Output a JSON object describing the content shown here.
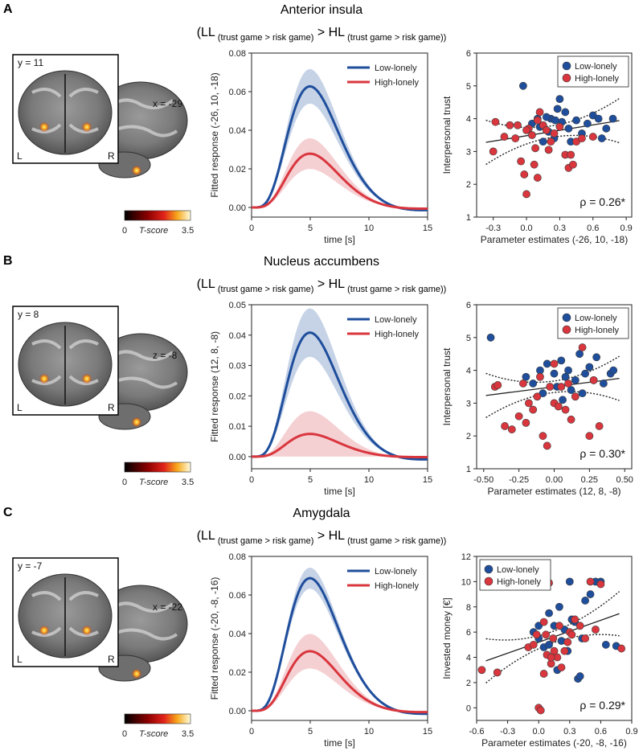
{
  "colors": {
    "low": "#1f4e9c",
    "high": "#d9363e",
    "low_fill": "#bccbe3",
    "high_fill": "#f3c8cb"
  },
  "contrast": {
    "ll": "LL",
    "hl": "HL",
    "sub": "(trust game > risk game)",
    "gt": ">"
  },
  "colorbar": {
    "min": "0",
    "max": "3.5",
    "label": "T-score"
  },
  "panels": [
    {
      "letter": "A",
      "region": "Anterior insula",
      "slice_inset": "y = 11",
      "slice_main": "x = -29",
      "L": "L",
      "R": "R",
      "chart_data": [
        {
          "type": "line",
          "ylabel": "Fitted response (-26, 10, -18)",
          "xlabel": "time [s]",
          "xlim": [
            0,
            15
          ],
          "xticks": [
            "0",
            "5",
            "10",
            "15"
          ],
          "ylim": [
            -0.005,
            0.08
          ],
          "yticks": [
            "0.00",
            "0.02",
            "0.04",
            "0.06",
            "0.08"
          ],
          "legend": "top-right",
          "series": [
            {
              "name": "Low-lonely",
              "peak": 0.063,
              "band": 0.009
            },
            {
              "name": "High-lonely",
              "peak": 0.028,
              "band": 0.008
            }
          ]
        },
        {
          "type": "scatter",
          "ylabel": "Interpersonal trust",
          "xlabel": "Parameter estimates (-26, 10, -18)",
          "xlim": [
            -0.45,
            0.95
          ],
          "xticks": [
            "-0.3",
            "0.0",
            "0.3",
            "0.6",
            "0.9"
          ],
          "ylim": [
            1,
            6
          ],
          "yticks": [
            "1",
            "2",
            "3",
            "4",
            "5",
            "6"
          ],
          "legend": "top-right",
          "rho": "ρ = 0.26*",
          "fit": {
            "slope": 0.55,
            "intercept": 3.48
          },
          "series": [
            {
              "name": "Low-lonely",
              "points": [
                [
                  -0.03,
                  5.0
                ],
                [
                  0.05,
                  3.85
                ],
                [
                  0.1,
                  4.0
                ],
                [
                  0.15,
                  3.3
                ],
                [
                  0.2,
                  3.6
                ],
                [
                  0.22,
                  4.0
                ],
                [
                  0.25,
                  3.4
                ],
                [
                  0.28,
                  4.3
                ],
                [
                  0.3,
                  4.6
                ],
                [
                  0.32,
                  3.9
                ],
                [
                  0.35,
                  4.2
                ],
                [
                  0.38,
                  3.7
                ],
                [
                  0.4,
                  3.3
                ],
                [
                  0.45,
                  3.95
                ],
                [
                  0.5,
                  3.55
                ],
                [
                  0.55,
                  3.85
                ],
                [
                  0.6,
                  4.1
                ],
                [
                  0.65,
                  4.0
                ],
                [
                  0.68,
                  3.4
                ],
                [
                  0.72,
                  3.7
                ],
                [
                  0.78,
                  4.0
                ],
                [
                  0.12,
                  3.75
                ],
                [
                  0.18,
                  4.05
                ],
                [
                  0.26,
                  3.95
                ]
              ]
            },
            {
              "name": "High-lonely",
              "points": [
                [
                  -0.3,
                  3.0
                ],
                [
                  -0.28,
                  3.9
                ],
                [
                  -0.2,
                  3.45
                ],
                [
                  -0.15,
                  3.8
                ],
                [
                  -0.1,
                  3.4
                ],
                [
                  -0.05,
                  2.7
                ],
                [
                  -0.02,
                  2.3
                ],
                [
                  0.0,
                  1.7
                ],
                [
                  0.02,
                  3.7
                ],
                [
                  0.05,
                  3.5
                ],
                [
                  0.07,
                  2.6
                ],
                [
                  0.08,
                  3.1
                ],
                [
                  0.1,
                  2.2
                ],
                [
                  0.12,
                  4.2
                ],
                [
                  0.15,
                  3.8
                ],
                [
                  0.18,
                  3.65
                ],
                [
                  0.2,
                  3.05
                ],
                [
                  0.22,
                  3.3
                ],
                [
                  0.25,
                  3.55
                ],
                [
                  0.3,
                  3.75
                ],
                [
                  0.35,
                  2.9
                ],
                [
                  0.38,
                  2.5
                ],
                [
                  0.4,
                  2.9
                ],
                [
                  0.42,
                  2.6
                ],
                [
                  0.45,
                  3.3
                ],
                [
                  0.5,
                  3.4
                ],
                [
                  0.6,
                  3.45
                ],
                [
                  0.1,
                  3.95
                ],
                [
                  0.0,
                  3.65
                ],
                [
                  -0.08,
                  3.8
                ]
              ]
            }
          ]
        }
      ]
    },
    {
      "letter": "B",
      "region": "Nucleus accumbens",
      "slice_inset": "y = 8",
      "slice_main": "z = -8",
      "L": "L",
      "R": "R",
      "chart_data": [
        {
          "type": "line",
          "ylabel": "Fitted response (12, 8, -8)",
          "xlabel": "time [s]",
          "xlim": [
            0,
            15
          ],
          "xticks": [
            "0",
            "5",
            "10",
            "15"
          ],
          "ylim": [
            -0.004,
            0.05
          ],
          "yticks": [
            "0.00",
            "0.01",
            "0.02",
            "0.03",
            "0.04",
            "0.05"
          ],
          "legend": "top-right",
          "series": [
            {
              "name": "Low-lonely",
              "peak": 0.041,
              "band": 0.008
            },
            {
              "name": "High-lonely",
              "peak": 0.0075,
              "band": 0.0075
            }
          ]
        },
        {
          "type": "scatter",
          "ylabel": "Interpersonal trust",
          "xlabel": "Parameter estimates (12, 8, -8)",
          "xlim": [
            -0.55,
            0.55
          ],
          "xticks": [
            "-0.50",
            "-0.25",
            "0.00",
            "0.25",
            "0.50"
          ],
          "ylim": [
            1,
            6
          ],
          "yticks": [
            "1",
            "2",
            "3",
            "4",
            "5",
            "6"
          ],
          "legend": "top-right",
          "rho": "ρ = 0.30*",
          "fit": {
            "slope": 0.55,
            "intercept": 3.5
          },
          "series": [
            {
              "name": "Low-lonely",
              "points": [
                [
                  -0.45,
                  5.0
                ],
                [
                  -0.2,
                  3.8
                ],
                [
                  -0.15,
                  3.6
                ],
                [
                  -0.1,
                  4.0
                ],
                [
                  -0.05,
                  4.2
                ],
                [
                  0.0,
                  3.9
                ],
                [
                  0.02,
                  3.5
                ],
                [
                  0.05,
                  4.3
                ],
                [
                  0.08,
                  3.8
                ],
                [
                  0.1,
                  4.0
                ],
                [
                  0.12,
                  3.4
                ],
                [
                  0.15,
                  3.7
                ],
                [
                  0.18,
                  4.5
                ],
                [
                  0.2,
                  3.3
                ],
                [
                  0.22,
                  3.9
                ],
                [
                  0.25,
                  4.1
                ],
                [
                  0.28,
                  3.7
                ],
                [
                  0.3,
                  4.4
                ],
                [
                  0.35,
                  3.6
                ],
                [
                  0.4,
                  3.9
                ],
                [
                  0.42,
                  4.0
                ],
                [
                  -0.08,
                  3.3
                ],
                [
                  0.06,
                  3.1
                ]
              ]
            },
            {
              "name": "High-lonely",
              "points": [
                [
                  -0.42,
                  3.5
                ],
                [
                  -0.4,
                  3.55
                ],
                [
                  -0.35,
                  2.3
                ],
                [
                  -0.3,
                  2.2
                ],
                [
                  -0.25,
                  2.6
                ],
                [
                  -0.2,
                  2.4
                ],
                [
                  -0.18,
                  3.0
                ],
                [
                  -0.15,
                  2.8
                ],
                [
                  -0.12,
                  3.2
                ],
                [
                  -0.1,
                  3.8
                ],
                [
                  -0.08,
                  2.0
                ],
                [
                  -0.05,
                  1.7
                ],
                [
                  -0.03,
                  3.5
                ],
                [
                  0.0,
                  3.0
                ],
                [
                  0.03,
                  2.9
                ],
                [
                  0.05,
                  3.5
                ],
                [
                  0.08,
                  2.8
                ],
                [
                  0.1,
                  3.6
                ],
                [
                  0.12,
                  2.5
                ],
                [
                  0.15,
                  3.2
                ],
                [
                  0.2,
                  4.7
                ],
                [
                  0.25,
                  2.0
                ],
                [
                  0.28,
                  3.7
                ],
                [
                  0.32,
                  2.3
                ],
                [
                  -0.22,
                  3.6
                ],
                [
                  0.0,
                  4.2
                ]
              ]
            }
          ]
        }
      ]
    },
    {
      "letter": "C",
      "region": "Amygdala",
      "slice_inset": "y = -7",
      "slice_main": "x = -22",
      "L": "L",
      "R": "R",
      "chart_data": [
        {
          "type": "line",
          "ylabel": "Fitted response (-20, -8, -16)",
          "xlabel": "time [s]",
          "xlim": [
            0,
            15
          ],
          "xticks": [
            "0",
            "5",
            "10",
            "15"
          ],
          "ylim": [
            -0.005,
            0.08
          ],
          "yticks": [
            "0.00",
            "0.02",
            "0.04",
            "0.06",
            "0.08"
          ],
          "legend": "top-right",
          "series": [
            {
              "name": "Low-lonely",
              "peak": 0.069,
              "band": 0.0055
            },
            {
              "name": "High-lonely",
              "peak": 0.031,
              "band": 0.009
            }
          ]
        },
        {
          "type": "scatter",
          "ylabel": "Invested money [€]",
          "xlabel": "Parameter estimates (-20, -8, -16)",
          "xlim": [
            -0.6,
            0.9
          ],
          "xticks": [
            "-0.6",
            "-0.3",
            "0.0",
            "0.3",
            "0.6",
            "0.9"
          ],
          "ylim": [
            -1,
            12
          ],
          "yticks": [
            "0",
            "2",
            "4",
            "6",
            "8",
            "10",
            "12"
          ],
          "legend": "top-left",
          "rho": "ρ = 0.29*",
          "fit": {
            "slope": 2.9,
            "intercept": 5.2
          },
          "series": [
            {
              "name": "Low-lonely",
              "points": [
                [
                  -0.05,
                  6.0
                ],
                [
                  0.0,
                  5.5
                ],
                [
                  0.05,
                  4.8
                ],
                [
                  0.1,
                  7.5
                ],
                [
                  0.1,
                  5.0
                ],
                [
                  0.15,
                  6.5
                ],
                [
                  0.2,
                  8.0
                ],
                [
                  0.22,
                  5.3
                ],
                [
                  0.25,
                  6.2
                ],
                [
                  0.28,
                  4.5
                ],
                [
                  0.3,
                  10.0
                ],
                [
                  0.32,
                  7.0
                ],
                [
                  0.35,
                  6.8
                ],
                [
                  0.38,
                  2.3
                ],
                [
                  0.4,
                  2.5
                ],
                [
                  0.42,
                  5.5
                ],
                [
                  0.45,
                  8.5
                ],
                [
                  0.5,
                  9.0
                ],
                [
                  0.55,
                  10.0
                ],
                [
                  0.6,
                  10.0
                ],
                [
                  0.65,
                  5.0
                ],
                [
                  0.75,
                  4.9
                ],
                [
                  0.0,
                  6.5
                ],
                [
                  0.18,
                  3.0
                ]
              ]
            },
            {
              "name": "High-lonely",
              "points": [
                [
                  -0.55,
                  3.0
                ],
                [
                  -0.4,
                  2.8
                ],
                [
                  -0.1,
                  4.8
                ],
                [
                  -0.05,
                  5.0
                ],
                [
                  0.0,
                  0.0
                ],
                [
                  0.02,
                  -0.2
                ],
                [
                  0.05,
                  6.8
                ],
                [
                  0.07,
                  5.8
                ],
                [
                  0.08,
                  4.2
                ],
                [
                  0.1,
                  9.9
                ],
                [
                  0.12,
                  3.5
                ],
                [
                  0.14,
                  5.5
                ],
                [
                  0.15,
                  4.5
                ],
                [
                  0.18,
                  4.0
                ],
                [
                  0.2,
                  6.5
                ],
                [
                  0.22,
                  3.2
                ],
                [
                  0.25,
                  4.5
                ],
                [
                  0.28,
                  5.2
                ],
                [
                  0.3,
                  6.0
                ],
                [
                  0.32,
                  5.8
                ],
                [
                  0.35,
                  7.0
                ],
                [
                  0.4,
                  6.5
                ],
                [
                  0.45,
                  5.5
                ],
                [
                  0.5,
                  10.0
                ],
                [
                  0.55,
                  6.2
                ],
                [
                  0.6,
                  9.8
                ],
                [
                  0.8,
                  4.7
                ],
                [
                  0.05,
                  2.7
                ],
                [
                  -0.02,
                  5.8
                ],
                [
                  0.12,
                  4.0
                ]
              ]
            }
          ]
        }
      ]
    }
  ]
}
